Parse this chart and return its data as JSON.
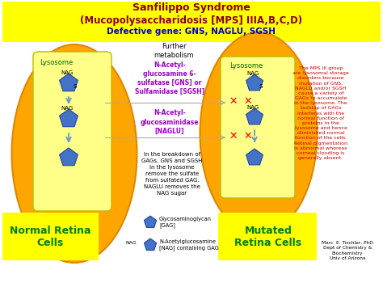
{
  "title_line1": "Sanfilippo Syndrome",
  "title_line2": "(Mucopolysaccharidosis [MPS] IIIA,B,C,D)",
  "title_line3": "Defective gene: GNS, NAGLU, SGSH",
  "title_bg": "#FFFF00",
  "title_color1": "#8B0000",
  "title_color2": "#8B0000",
  "title_color3": "#0000CC",
  "bg_color": "#FFFFFF",
  "outer_ellipse_color": "#FFA500",
  "inner_rect_color": "#FFFF88",
  "lysosome_label_color": "#006600",
  "normal_label": "Normal Retina\nCells",
  "mutated_label": "Mutated\nRetina Cells",
  "normal_label_color": "#008000",
  "mutated_label_color": "#008000",
  "enzyme1": "N-Acetyl-\nglucosamine 6-\nsulfatase [GNS] or\nSulfamidase [SGSH]",
  "enzyme2": "N-Acetyl-\nglucosaminidase\n[NAGLU]",
  "enzyme_color": "#9900CC",
  "further_metabolism": "Further\nmetabolism",
  "breakdown_text": "In the breakdown of\nGAGs, GNS and SGSH\nin the lysosome\nremove the sulfate\nfrom sulfated GAG.\nNAGLU removes the\nNAG sugar",
  "mps_text": "The MPS III group\nare lysosomal storage\ndisorders because\nmutation of GNS,\nNAGLU and/or SGSH\ncause a variety of\nGAGs to accumulate\nin the lysosome. The\nbuildup of GAGs\ninterferes with the\nnormal function of\nproteins in the\nlysosome and hence\ndiminished normal\nfunction of the cells.\nRetinal pigmentation\nis abnormal whereas\ncorneal clouding is\ngenerally absent.",
  "mps_text_color": "#CC0000",
  "legend_gag": "Glycosaminoglycan\n[GAG]",
  "legend_nag": "N-Acetylglucosamine\n[NAG] containing GAG",
  "pentagon_color": "#4472C4",
  "credit_text": "Marc  E. Tischler, PhD\nDept of Chemistry &\nBiochemistry\nUniv of Arizona",
  "arrow_color": "#6699CC",
  "x_color": "#FF0000"
}
